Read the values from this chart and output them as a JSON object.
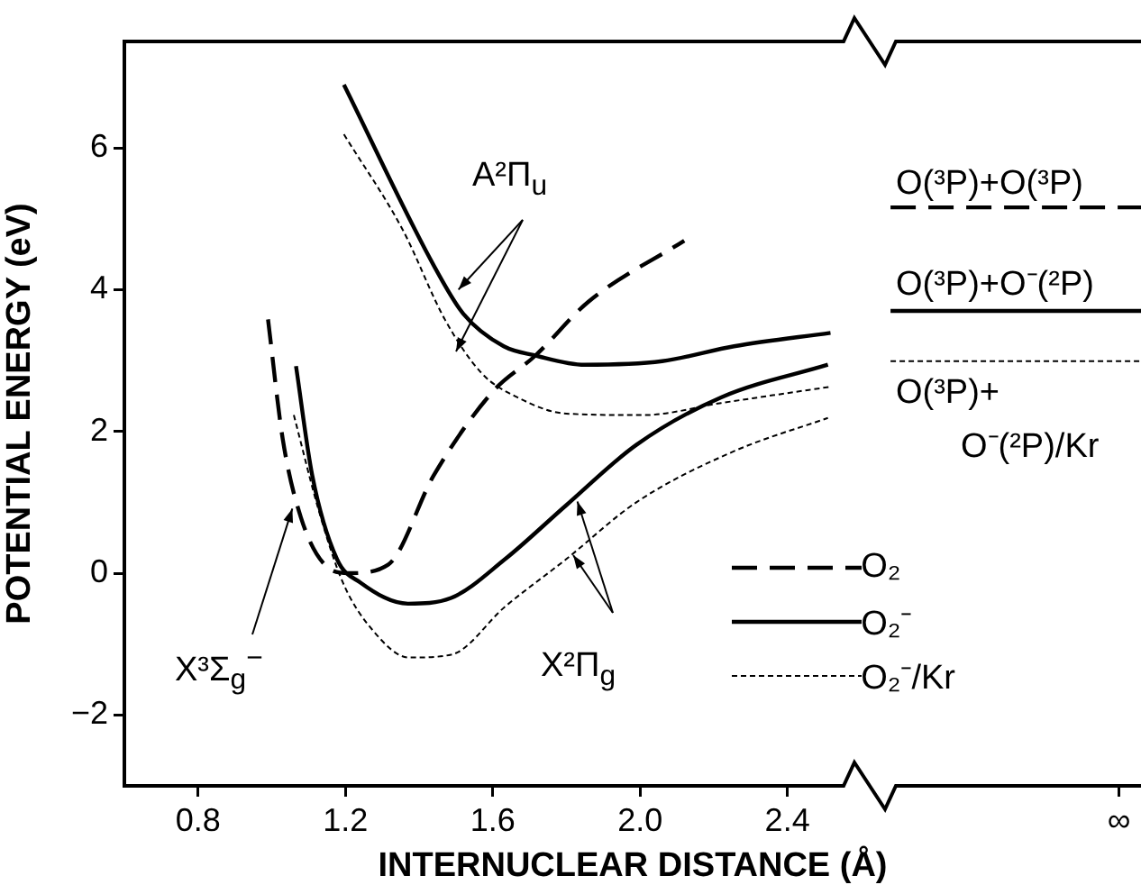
{
  "chart_data": {
    "type": "line",
    "xlabel": "INTERNUCLEAR DISTANCE (Å)",
    "ylabel": "POTENTIAL ENERGY (eV)",
    "xlim": [
      0.6,
      3.36
    ],
    "xticks": [
      0.8,
      1.2,
      1.6,
      {
        "value": 2,
        "label": "2.0"
      },
      2.4,
      {
        "value": 3.3,
        "label": "∞"
      }
    ],
    "ylim": [
      -3,
      7.5
    ],
    "yticks": [
      -2,
      0,
      2,
      4,
      6
    ],
    "grid": false,
    "legend": "bottom right",
    "series": [
      {
        "name": "O₂",
        "color": "#000000",
        "line_style": "dashed",
        "x": [
          0.99,
          1.03,
          1.079,
          1.144,
          1.21,
          1.316,
          1.44,
          1.6,
          1.716,
          1.86,
          2.12
        ],
        "values": [
          3.58,
          1.89,
          0.79,
          0.12,
          0.0,
          0.12,
          1.38,
          2.56,
          3.07,
          3.83,
          4.69
        ]
      },
      {
        "name": "O₂⁻",
        "color": "#000000",
        "line_style": "solid",
        "x": [
          1.066,
          1.11,
          1.177,
          1.24,
          1.37,
          1.487,
          1.634,
          1.8,
          1.99,
          2.22,
          2.51
        ],
        "values": [
          2.92,
          1.38,
          0.2,
          -0.13,
          -0.43,
          -0.35,
          0.2,
          0.96,
          1.81,
          2.48,
          2.94
        ]
      },
      {
        "name": "O₂⁻/Kr",
        "color": "#000000",
        "line_style": "dotted",
        "x": [
          1.06,
          1.128,
          1.193,
          1.275,
          1.373,
          1.487,
          1.634,
          1.8,
          1.99,
          2.255,
          2.51
        ],
        "values": [
          2.23,
          0.88,
          -0.13,
          -0.81,
          -1.19,
          -1.15,
          -0.47,
          0.2,
          1.0,
          1.72,
          2.19
        ]
      },
      {
        "color": "#000000",
        "line_style": "solid",
        "x": [
          1.196,
          1.44,
          1.52,
          1.63,
          1.716,
          1.85,
          2.06,
          2.255,
          2.517
        ],
        "values": [
          6.89,
          4.34,
          3.66,
          3.2,
          3.07,
          2.94,
          2.99,
          3.2,
          3.39
        ]
      },
      {
        "color": "#000000",
        "line_style": "dotted",
        "x": [
          1.196,
          1.356,
          1.47,
          1.57,
          1.667,
          1.8,
          2.01,
          2.22,
          2.517
        ],
        "values": [
          6.19,
          4.84,
          3.58,
          2.82,
          2.48,
          2.25,
          2.23,
          2.4,
          2.63
        ]
      },
      {
        "color": "#000000",
        "line_style": "dashed",
        "x": [
          2.68,
          3.36
        ],
        "values": [
          5.16,
          5.16
        ]
      },
      {
        "color": "#000000",
        "line_style": "solid",
        "x": [
          2.68,
          3.36
        ],
        "values": [
          3.7,
          3.7
        ]
      },
      {
        "color": "#000000",
        "line_style": "dotted",
        "x": [
          2.68,
          3.36
        ],
        "values": [
          2.99,
          2.99
        ]
      }
    ],
    "annotations": [
      {
        "text": "A²Π$_{u}$",
        "x": 1.507,
        "y": 4.0
      },
      {
        "text": "X²Π$_{g}$",
        "x": 1.83,
        "y": 1.01
      },
      {
        "text": "X³Σ$_{g}$$^{−}$",
        "x": 1.056,
        "y": 0.91
      },
      "O(³P)+O(³P)",
      "O(³P)+O⁻(²P)",
      "O(³P)+",
      "O⁻(²P)/Kr"
    ]
  }
}
